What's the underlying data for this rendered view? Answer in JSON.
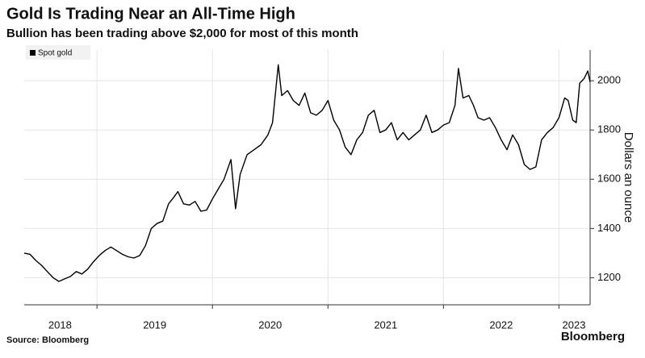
{
  "chart_data": {
    "type": "line",
    "title": "Gold Is Trading Near an All-Time High",
    "subtitle": "Bullion has been trading above $2,000 for most of this month",
    "y_axis_label": "Dollars an ounce",
    "source": "Source: Bloomberg",
    "brand": "Bloomberg",
    "legend": "top-left",
    "grid": true,
    "xlim": [
      2018.37,
      2023.27
    ],
    "xticks": [
      {
        "value": 2018.68,
        "label": "2018"
      },
      {
        "value": 2019.5,
        "label": "2019"
      },
      {
        "value": 2020.5,
        "label": "2020"
      },
      {
        "value": 2021.5,
        "label": "2021"
      },
      {
        "value": 2022.5,
        "label": "2022"
      },
      {
        "value": 2023.13,
        "label": "2023"
      }
    ],
    "xgrid": [
      2019,
      2020,
      2021,
      2022,
      2023
    ],
    "ylim": [
      1090,
      2125
    ],
    "yticks": [
      1200,
      1400,
      1600,
      1800,
      2000
    ],
    "x": [
      2018.37,
      2018.42,
      2018.47,
      2018.52,
      2018.57,
      2018.62,
      2018.67,
      2018.72,
      2018.77,
      2018.82,
      2018.87,
      2018.92,
      2018.97,
      2019.02,
      2019.07,
      2019.12,
      2019.17,
      2019.22,
      2019.27,
      2019.32,
      2019.37,
      2019.42,
      2019.47,
      2019.52,
      2019.57,
      2019.62,
      2019.67,
      2019.7,
      2019.75,
      2019.8,
      2019.85,
      2019.9,
      2019.95,
      2020.0,
      2020.05,
      2020.1,
      2020.16,
      2020.2,
      2020.24,
      2020.3,
      2020.36,
      2020.42,
      2020.48,
      2020.52,
      2020.57,
      2020.6,
      2020.65,
      2020.7,
      2020.75,
      2020.8,
      2020.85,
      2020.9,
      2020.95,
      2021.0,
      2021.05,
      2021.1,
      2021.15,
      2021.2,
      2021.25,
      2021.3,
      2021.35,
      2021.4,
      2021.45,
      2021.5,
      2021.55,
      2021.6,
      2021.65,
      2021.7,
      2021.75,
      2021.8,
      2021.85,
      2021.9,
      2021.95,
      2022.0,
      2022.05,
      2022.1,
      2022.13,
      2022.17,
      2022.22,
      2022.26,
      2022.3,
      2022.35,
      2022.4,
      2022.45,
      2022.5,
      2022.55,
      2022.6,
      2022.65,
      2022.7,
      2022.75,
      2022.8,
      2022.85,
      2022.9,
      2022.95,
      2023.0,
      2023.05,
      2023.08,
      2023.12,
      2023.15,
      2023.18,
      2023.22,
      2023.25,
      2023.27
    ],
    "series": [
      {
        "name": "Spot gold",
        "color": "#000000",
        "values": [
          1300,
          1295,
          1270,
          1250,
          1225,
          1200,
          1185,
          1195,
          1205,
          1225,
          1215,
          1235,
          1265,
          1290,
          1310,
          1325,
          1310,
          1295,
          1285,
          1280,
          1290,
          1330,
          1400,
          1420,
          1430,
          1500,
          1530,
          1550,
          1500,
          1495,
          1510,
          1470,
          1475,
          1520,
          1560,
          1600,
          1680,
          1480,
          1620,
          1700,
          1720,
          1740,
          1780,
          1830,
          2065,
          1940,
          1960,
          1920,
          1900,
          1950,
          1870,
          1860,
          1880,
          1920,
          1840,
          1800,
          1730,
          1700,
          1760,
          1790,
          1860,
          1880,
          1790,
          1800,
          1830,
          1760,
          1790,
          1760,
          1780,
          1800,
          1860,
          1790,
          1800,
          1820,
          1830,
          1900,
          2050,
          1930,
          1940,
          1900,
          1850,
          1840,
          1850,
          1810,
          1760,
          1720,
          1780,
          1740,
          1660,
          1640,
          1650,
          1760,
          1790,
          1810,
          1850,
          1930,
          1920,
          1840,
          1830,
          1990,
          2010,
          2040,
          1995
        ]
      }
    ]
  }
}
